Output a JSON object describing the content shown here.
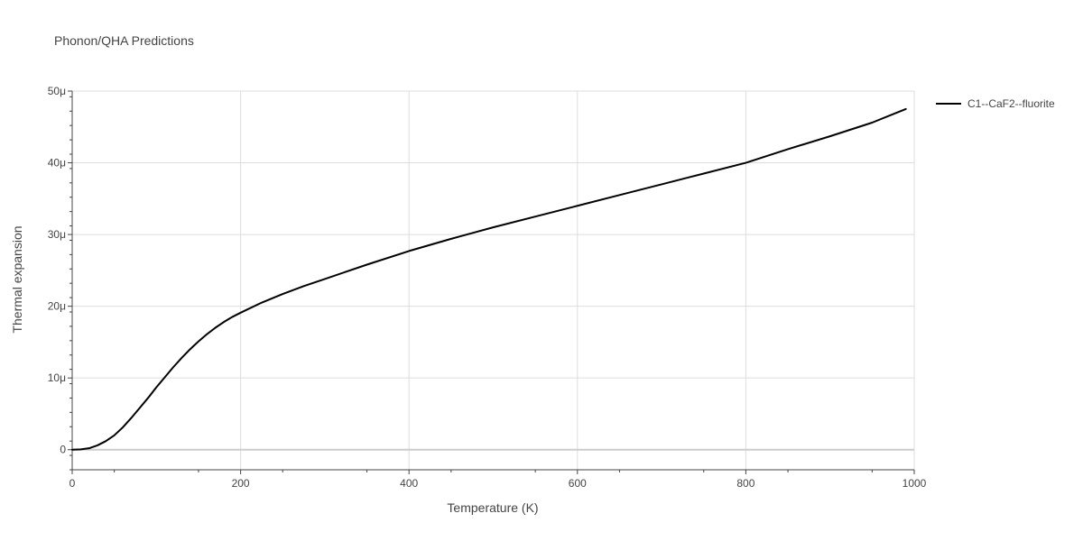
{
  "chart_data": {
    "type": "line",
    "title": "Phonon/QHA Predictions",
    "xlabel": "Temperature (K)",
    "ylabel": "Thermal expansion",
    "xlim": [
      0,
      1000
    ],
    "ylim": [
      -2.8e-06,
      5e-05
    ],
    "x_ticks": [
      0,
      200,
      400,
      600,
      800,
      1000
    ],
    "x_tick_labels": [
      "0",
      "200",
      "400",
      "600",
      "800",
      "1000"
    ],
    "y_ticks": [
      0,
      1e-05,
      2e-05,
      3e-05,
      4e-05,
      5e-05
    ],
    "y_tick_labels": [
      "0",
      "10μ",
      "20μ",
      "30μ",
      "40μ",
      "50μ"
    ],
    "grid": true,
    "legend_position": "top-right",
    "series": [
      {
        "name": "C1--CaF2--fluorite",
        "color": "#000000",
        "x": [
          0,
          10,
          20,
          30,
          40,
          50,
          60,
          70,
          80,
          90,
          100,
          110,
          120,
          130,
          140,
          150,
          160,
          170,
          180,
          190,
          200,
          225,
          250,
          275,
          300,
          350,
          400,
          450,
          500,
          550,
          600,
          650,
          700,
          750,
          800,
          850,
          900,
          950,
          990
        ],
        "y": [
          0,
          5e-08,
          2e-07,
          6e-07,
          1.2e-06,
          2e-06,
          3.1e-06,
          4.4e-06,
          5.8e-06,
          7.2e-06,
          8.7e-06,
          1.01e-05,
          1.15e-05,
          1.28e-05,
          1.4e-05,
          1.51e-05,
          1.61e-05,
          1.7e-05,
          1.78e-05,
          1.85e-05,
          1.91e-05,
          2.05e-05,
          2.17e-05,
          2.28e-05,
          2.38e-05,
          2.58e-05,
          2.77e-05,
          2.94e-05,
          3.1e-05,
          3.25e-05,
          3.4e-05,
          3.55e-05,
          3.7e-05,
          3.85e-05,
          4e-05,
          4.19e-05,
          4.37e-05,
          4.56e-05,
          4.75e-05
        ]
      }
    ]
  }
}
